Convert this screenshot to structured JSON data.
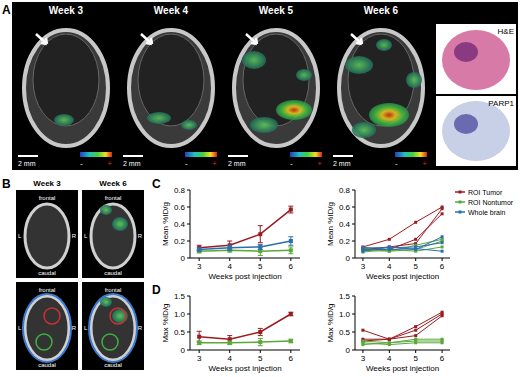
{
  "images": {
    "panel_a": {
      "letter": "A",
      "weeks": [
        "Week 3",
        "Week 4",
        "Week 5",
        "Week 6"
      ],
      "scale_bar": "2 mm",
      "colorbar_min": "-",
      "colorbar_max": "+",
      "histology": [
        "H&E",
        "PARP1"
      ]
    },
    "panel_b": {
      "letter": "B",
      "weeks": [
        "Week 3",
        "Week 6"
      ],
      "frontal": "frontal",
      "caudal": "caudal",
      "left": "L",
      "right": "R"
    }
  },
  "chart_data": [
    {
      "type": "line",
      "panel_label": "C",
      "ylabel": "Mean %ID/g",
      "xlabel": "Weeks post injection",
      "marker": "square",
      "x": [
        3,
        4,
        5,
        6
      ],
      "xlim": [
        2.7,
        6.3
      ],
      "xticks": [
        3,
        4,
        5,
        6
      ],
      "ylim": [
        0,
        0.8
      ],
      "yticks": [
        0,
        0.2,
        0.4,
        0.6,
        0.8
      ],
      "series": [
        {
          "name": "ROI Tumor",
          "color": "#9b1c20",
          "values": [
            0.12,
            0.15,
            0.28,
            0.57
          ],
          "errors": [
            0.03,
            0.05,
            0.1,
            0.04
          ]
        },
        {
          "name": "ROI Nontumor",
          "color": "#5aa83a",
          "values": [
            0.08,
            0.09,
            0.08,
            0.09
          ],
          "errors": [
            0.02,
            0.02,
            0.05,
            0.04
          ]
        },
        {
          "name": "Whole brain",
          "color": "#2a6fb0",
          "values": [
            0.1,
            0.12,
            0.13,
            0.2
          ],
          "errors": [
            0.02,
            0.03,
            0.03,
            0.05
          ]
        }
      ]
    },
    {
      "type": "line",
      "ylabel": "Mean %ID/g",
      "xlabel": "Weeks post injection",
      "marker": "square",
      "legend": "right",
      "x": [
        3,
        4,
        5,
        6
      ],
      "xlim": [
        2.7,
        6.3
      ],
      "xticks": [
        3,
        4,
        5,
        6
      ],
      "ylim": [
        0,
        0.8
      ],
      "yticks": [
        0,
        0.2,
        0.4,
        0.6,
        0.8
      ],
      "series": [
        {
          "name": "ROI Tumor",
          "color": "#9b1c20",
          "values": [
            0.13,
            0.22,
            0.42,
            0.6
          ]
        },
        {
          "name": "ROI Tumor",
          "color": "#9b1c20",
          "values": [
            0.1,
            0.13,
            0.17,
            0.58
          ]
        },
        {
          "name": "ROI Tumor",
          "color": "#9b1c20",
          "values": [
            0.12,
            0.1,
            0.22,
            0.52
          ]
        },
        {
          "name": "ROI Nontumor",
          "color": "#5aa83a",
          "values": [
            0.07,
            0.1,
            0.08,
            0.13
          ]
        },
        {
          "name": "ROI Nontumor",
          "color": "#5aa83a",
          "values": [
            0.09,
            0.08,
            0.1,
            0.2
          ]
        },
        {
          "name": "ROI Nontumor",
          "color": "#5aa83a",
          "values": [
            0.12,
            0.08,
            0.15,
            0.22
          ]
        },
        {
          "name": "Whole brain",
          "color": "#2a6fb0",
          "values": [
            0.12,
            0.12,
            0.13,
            0.18
          ]
        },
        {
          "name": "Whole brain",
          "color": "#2a6fb0",
          "values": [
            0.1,
            0.1,
            0.11,
            0.08
          ]
        },
        {
          "name": "Whole brain",
          "color": "#2a6fb0",
          "values": [
            0.08,
            0.13,
            0.1,
            0.25
          ]
        }
      ]
    },
    {
      "type": "line",
      "panel_label": "D",
      "ylabel": "Max %ID/g",
      "xlabel": "Weeks post injection",
      "marker": "square",
      "x": [
        3,
        4,
        5,
        6
      ],
      "xlim": [
        2.7,
        6.3
      ],
      "xticks": [
        3,
        4,
        5,
        6
      ],
      "ylim": [
        0,
        1.5
      ],
      "yticks": [
        0,
        0.5,
        {
          "value": 1,
          "label": "1.0"
        },
        1.5
      ],
      "series": [
        {
          "name": "ROI Tumor",
          "color": "#9b1c20",
          "values": [
            0.37,
            0.3,
            0.5,
            1.0
          ],
          "errors": [
            0.15,
            0.1,
            0.1,
            0.05
          ]
        },
        {
          "name": "ROI Nontumor",
          "color": "#5aa83a",
          "values": [
            0.2,
            0.2,
            0.22,
            0.25
          ],
          "errors": [
            0.05,
            0.05,
            0.1,
            0.05
          ]
        }
      ]
    },
    {
      "type": "line",
      "ylabel": "Max %ID/g",
      "xlabel": "Weeks post injection",
      "marker": "square",
      "x": [
        3,
        4,
        5,
        6
      ],
      "xlim": [
        2.7,
        6.3
      ],
      "xticks": [
        3,
        4,
        5,
        6
      ],
      "ylim": [
        0,
        1.5
      ],
      "yticks": [
        0,
        0.5,
        {
          "value": 1,
          "label": "1.0"
        },
        1.5
      ],
      "series": [
        {
          "name": "ROI Tumor",
          "color": "#9b1c20",
          "values": [
            0.55,
            0.3,
            0.65,
            1.05
          ]
        },
        {
          "name": "ROI Tumor",
          "color": "#9b1c20",
          "values": [
            0.25,
            0.3,
            0.55,
            1.0
          ]
        },
        {
          "name": "ROI Tumor",
          "color": "#9b1c20",
          "values": [
            0.3,
            0.3,
            0.4,
            0.95
          ]
        },
        {
          "name": "ROI Nontumor",
          "color": "#5aa83a",
          "values": [
            0.25,
            0.2,
            0.3,
            0.3
          ]
        },
        {
          "name": "ROI Nontumor",
          "color": "#5aa83a",
          "values": [
            0.2,
            0.15,
            0.2,
            0.2
          ]
        },
        {
          "name": "ROI Nontumor",
          "color": "#5aa83a",
          "values": [
            0.15,
            0.2,
            0.25,
            0.25
          ]
        }
      ]
    }
  ]
}
